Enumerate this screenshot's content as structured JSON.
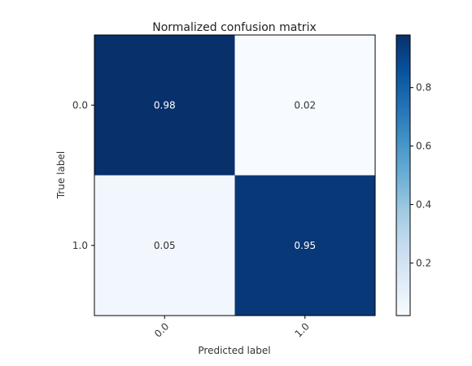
{
  "chart_data": {
    "type": "heatmap",
    "title": "Normalized confusion matrix",
    "xlabel": "Predicted label",
    "ylabel": "True label",
    "x_categories": [
      "0.0",
      "1.0"
    ],
    "y_categories": [
      "0.0",
      "1.0"
    ],
    "values": [
      [
        0.98,
        0.02
      ],
      [
        0.05,
        0.95
      ]
    ],
    "cell_labels": [
      [
        "0.98",
        "0.02"
      ],
      [
        "0.05",
        "0.95"
      ]
    ],
    "colormap": "Blues",
    "colorbar": {
      "range": [
        0.02,
        0.98
      ],
      "ticks": [
        0.2,
        0.4,
        0.6,
        0.8
      ],
      "tick_labels": [
        "0.2",
        "0.4",
        "0.6",
        "0.8"
      ]
    },
    "colors": {
      "low": "#f7fbff",
      "high": "#08306b",
      "text_on_dark": "#ffffff",
      "text_on_light": "#333333"
    },
    "grid": false
  }
}
